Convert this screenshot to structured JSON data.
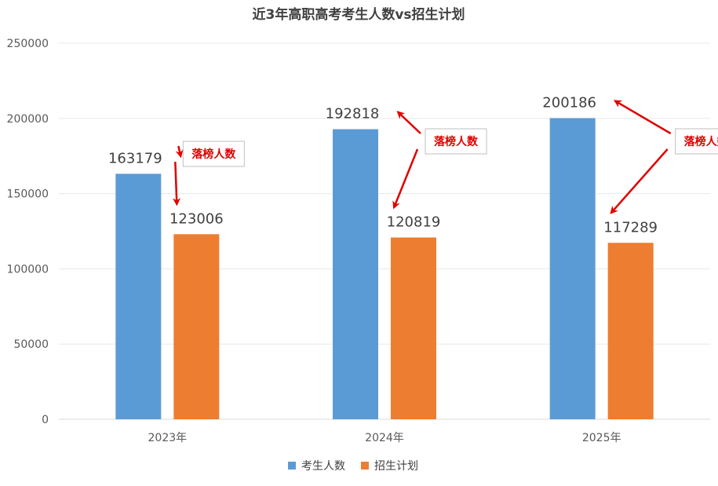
{
  "chart_data": {
    "type": "bar",
    "title": "近3年高职高考考生人数vs招生计划",
    "categories": [
      "2023年",
      "2024年",
      "2025年"
    ],
    "series": [
      {
        "name": "考生人数",
        "values": [
          163179,
          192818,
          200186
        ],
        "color": "#5b9bd5"
      },
      {
        "name": "招生计划",
        "values": [
          123006,
          120819,
          117289
        ],
        "color": "#ed7d31"
      }
    ],
    "ylim": [
      0,
      250000
    ],
    "yticks": [
      0,
      50000,
      100000,
      150000,
      200000,
      250000
    ],
    "grid": true,
    "legend_position": "bottom",
    "annotations": [
      {
        "text": "落榜人数",
        "category": "2023年",
        "arrow_color": "#e00000"
      },
      {
        "text": "落榜人数",
        "category": "2024年",
        "arrow_color": "#e00000"
      },
      {
        "text": "落榜人数",
        "category": "2025年",
        "arrow_color": "#e00000"
      }
    ]
  }
}
